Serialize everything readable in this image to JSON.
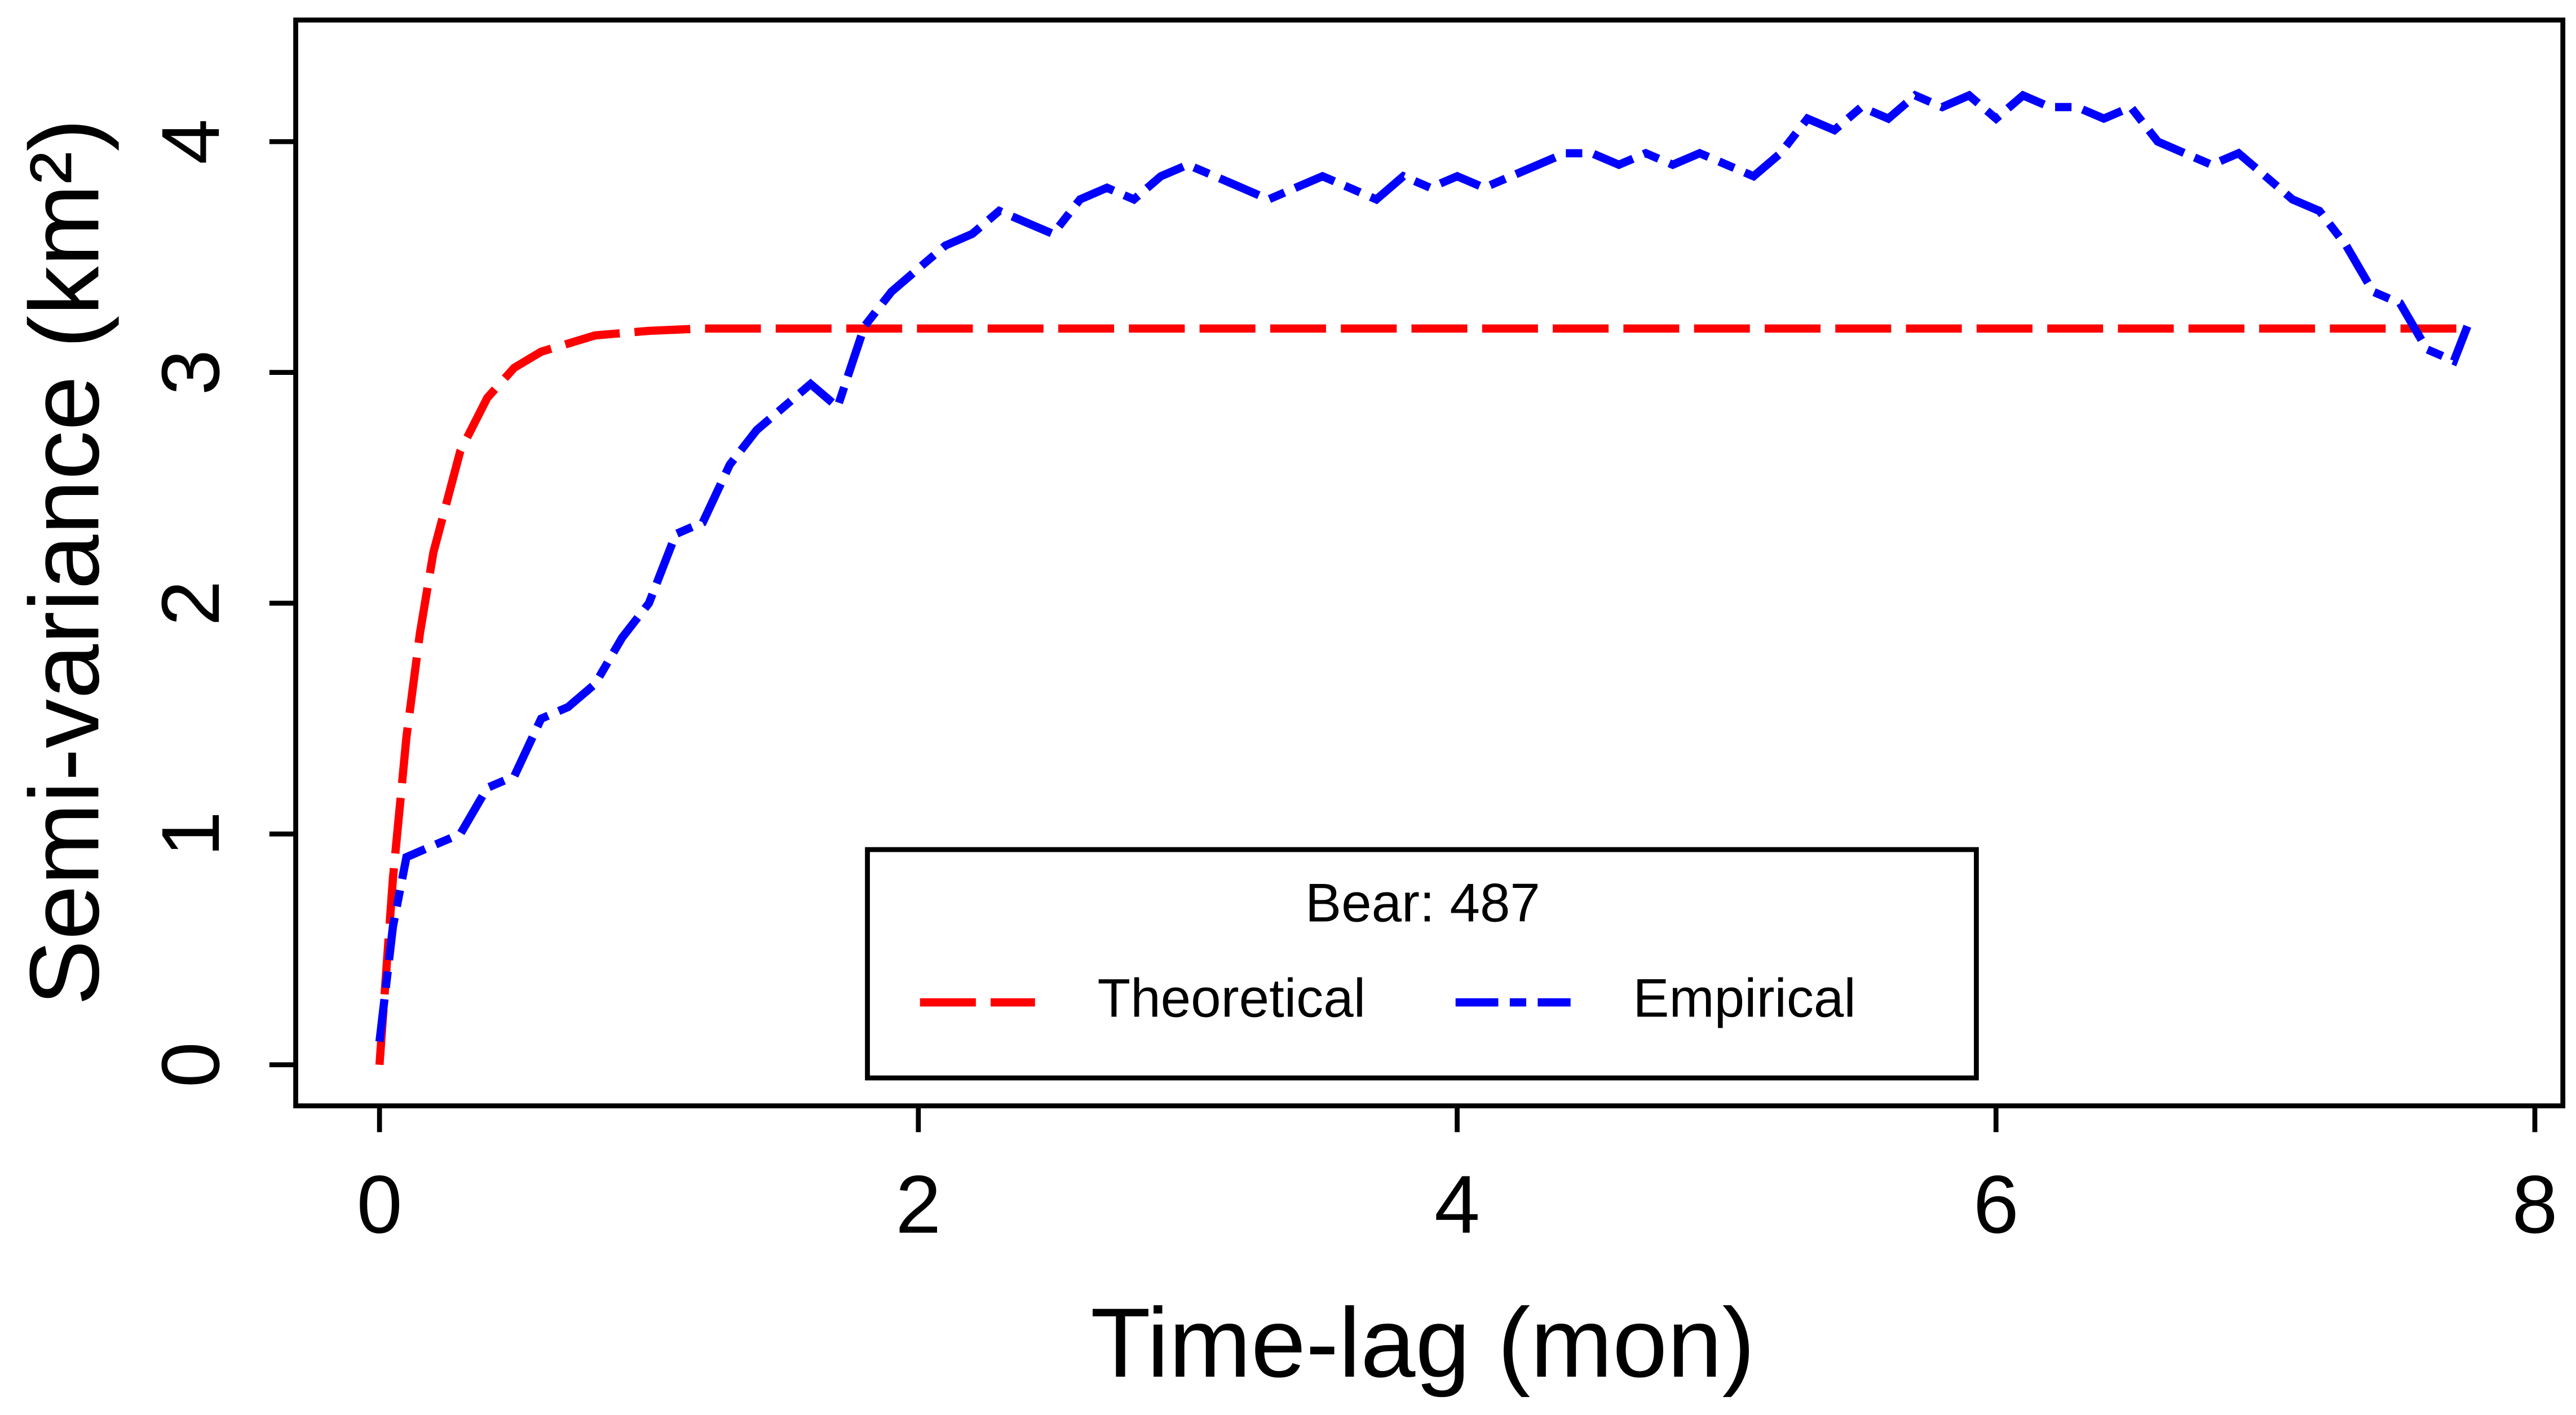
{
  "chart_data": {
    "type": "line",
    "x_label": "Time-lag (mon)",
    "y_label": "Semi-variance (km²)",
    "legend_title": "Bear: 487",
    "legend_position": "bottom",
    "xlim": [
      -0.311,
      8.104
    ],
    "ylim": [
      -0.178,
      4.527
    ],
    "xticks": [
      0,
      2,
      4,
      6,
      8
    ],
    "yticks": [
      0,
      1,
      2,
      3,
      4
    ],
    "series": [
      {
        "name": "Theoretical",
        "color": "#ff0000",
        "x": [
          0,
          0.05,
          0.1,
          0.15,
          0.2,
          0.3,
          0.4,
          0.5,
          0.6,
          0.8,
          1.0,
          1.2,
          1.5,
          2,
          3,
          4,
          5,
          6,
          7,
          7.75
        ],
        "values": [
          0,
          0.81,
          1.42,
          1.87,
          2.22,
          2.66,
          2.89,
          3.02,
          3.09,
          3.16,
          3.18,
          3.19,
          3.19,
          3.19,
          3.19,
          3.19,
          3.19,
          3.19,
          3.19,
          3.19
        ]
      },
      {
        "name": "Empirical",
        "color": "#0000ff",
        "x": [
          0,
          0.05,
          0.1,
          0.2,
          0.3,
          0.4,
          0.5,
          0.6,
          0.7,
          0.8,
          0.9,
          1.0,
          1.1,
          1.2,
          1.3,
          1.4,
          1.5,
          1.6,
          1.7,
          1.8,
          1.9,
          2.0,
          2.1,
          2.2,
          2.3,
          2.4,
          2.5,
          2.6,
          2.7,
          2.8,
          2.9,
          3.0,
          3.1,
          3.2,
          3.3,
          3.4,
          3.5,
          3.6,
          3.7,
          3.8,
          3.9,
          4.0,
          4.1,
          4.2,
          4.3,
          4.4,
          4.5,
          4.6,
          4.7,
          4.8,
          4.9,
          5.0,
          5.1,
          5.2,
          5.3,
          5.4,
          5.5,
          5.6,
          5.7,
          5.8,
          5.9,
          6.0,
          6.1,
          6.2,
          6.3,
          6.4,
          6.5,
          6.6,
          6.7,
          6.8,
          6.9,
          7.0,
          7.1,
          7.2,
          7.3,
          7.4,
          7.5,
          7.6,
          7.7,
          7.75
        ],
        "values": [
          0.1,
          0.6,
          0.9,
          0.95,
          1.0,
          1.2,
          1.25,
          1.5,
          1.55,
          1.65,
          1.85,
          2.0,
          2.3,
          2.35,
          2.6,
          2.75,
          2.85,
          2.95,
          2.85,
          3.2,
          3.35,
          3.45,
          3.55,
          3.6,
          3.7,
          3.65,
          3.6,
          3.75,
          3.8,
          3.75,
          3.85,
          3.9,
          3.85,
          3.8,
          3.75,
          3.8,
          3.85,
          3.8,
          3.75,
          3.85,
          3.8,
          3.85,
          3.8,
          3.85,
          3.9,
          3.95,
          3.95,
          3.9,
          3.95,
          3.9,
          3.95,
          3.9,
          3.85,
          3.95,
          4.1,
          4.05,
          4.15,
          4.1,
          4.2,
          4.15,
          4.2,
          4.1,
          4.2,
          4.15,
          4.15,
          4.1,
          4.15,
          4.0,
          3.95,
          3.9,
          3.95,
          3.85,
          3.75,
          3.7,
          3.55,
          3.35,
          3.3,
          3.1,
          3.05,
          3.2
        ]
      }
    ]
  }
}
